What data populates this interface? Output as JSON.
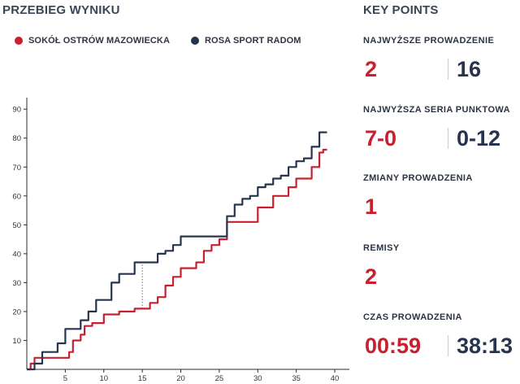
{
  "chart_title": "PRZEBIEG WYNIKU",
  "colors": {
    "home": "#c8202e",
    "away": "#27344f",
    "axis": "#2b2b2b",
    "text": "#333333"
  },
  "legend": [
    {
      "name": "SOKÓŁ OSTRÓW MAZOWIECKA",
      "color": "#c8202e"
    },
    {
      "name": "ROSA SPORT RADOM",
      "color": "#27344f"
    }
  ],
  "chart_data": {
    "type": "line",
    "title": "PRZEBIEG WYNIKU",
    "xlabel": "",
    "ylabel": "",
    "xlim": [
      0,
      40
    ],
    "ylim": [
      0,
      94
    ],
    "xticks": [
      5,
      10,
      15,
      20,
      25,
      30,
      35,
      40
    ],
    "yticks": [
      10,
      20,
      30,
      40,
      50,
      60,
      70,
      80,
      90
    ],
    "grid": false,
    "legend_position": "top-left",
    "annotation": {
      "x": 15,
      "y_from": 21,
      "y_to": 37,
      "style": "dotted"
    },
    "series": [
      {
        "name": "SOKÓŁ OSTRÓW MAZOWIECKA",
        "color": "#c8202e",
        "points": [
          [
            0,
            0
          ],
          [
            0.5,
            2
          ],
          [
            1,
            4
          ],
          [
            5,
            4
          ],
          [
            5.5,
            6
          ],
          [
            6,
            10
          ],
          [
            7,
            12
          ],
          [
            7.5,
            15
          ],
          [
            8.5,
            16
          ],
          [
            10,
            19
          ],
          [
            11,
            19
          ],
          [
            12,
            20
          ],
          [
            14,
            21
          ],
          [
            15,
            21
          ],
          [
            16,
            23
          ],
          [
            17,
            25
          ],
          [
            18,
            29
          ],
          [
            19,
            32
          ],
          [
            20,
            35
          ],
          [
            21,
            35
          ],
          [
            22,
            37
          ],
          [
            23,
            41
          ],
          [
            24,
            43
          ],
          [
            25,
            45
          ],
          [
            26,
            51
          ],
          [
            28,
            51
          ],
          [
            30,
            56
          ],
          [
            31,
            56
          ],
          [
            32,
            60
          ],
          [
            34,
            63
          ],
          [
            35,
            66
          ],
          [
            36,
            66
          ],
          [
            37,
            70
          ],
          [
            38,
            75
          ],
          [
            38.5,
            76
          ],
          [
            39,
            76
          ]
        ]
      },
      {
        "name": "ROSA SPORT RADOM",
        "color": "#27344f",
        "points": [
          [
            0,
            0
          ],
          [
            1,
            2
          ],
          [
            2,
            6
          ],
          [
            4,
            9
          ],
          [
            5,
            14
          ],
          [
            6,
            14
          ],
          [
            7,
            17
          ],
          [
            8,
            20
          ],
          [
            9,
            24
          ],
          [
            10,
            24
          ],
          [
            11,
            30
          ],
          [
            12,
            33
          ],
          [
            13,
            33
          ],
          [
            14,
            37
          ],
          [
            16,
            37
          ],
          [
            17,
            40
          ],
          [
            18,
            41
          ],
          [
            19,
            43
          ],
          [
            20,
            46
          ],
          [
            25,
            46
          ],
          [
            26,
            53
          ],
          [
            27,
            57
          ],
          [
            28,
            59
          ],
          [
            29,
            60
          ],
          [
            30,
            63
          ],
          [
            31,
            64
          ],
          [
            32,
            66
          ],
          [
            33,
            67
          ],
          [
            34,
            70
          ],
          [
            35,
            72
          ],
          [
            36,
            73
          ],
          [
            37,
            77
          ],
          [
            38,
            82
          ],
          [
            39,
            82
          ]
        ]
      }
    ]
  },
  "key_points": {
    "title": "KEY POINTS",
    "items": [
      {
        "label": "NAJWYŻSZE PROWADZENIE",
        "home": "2",
        "away": "16"
      },
      {
        "label": "NAJWYŻSZA SERIA PUNKTOWA",
        "home": "7-0",
        "away": "0-12"
      },
      {
        "label": "ZMIANY PROWADZENIA",
        "home": "1"
      },
      {
        "label": "REMISY",
        "home": "2"
      },
      {
        "label": "CZAS PROWADZENIA",
        "home": "00:59",
        "away": "38:13"
      }
    ]
  }
}
